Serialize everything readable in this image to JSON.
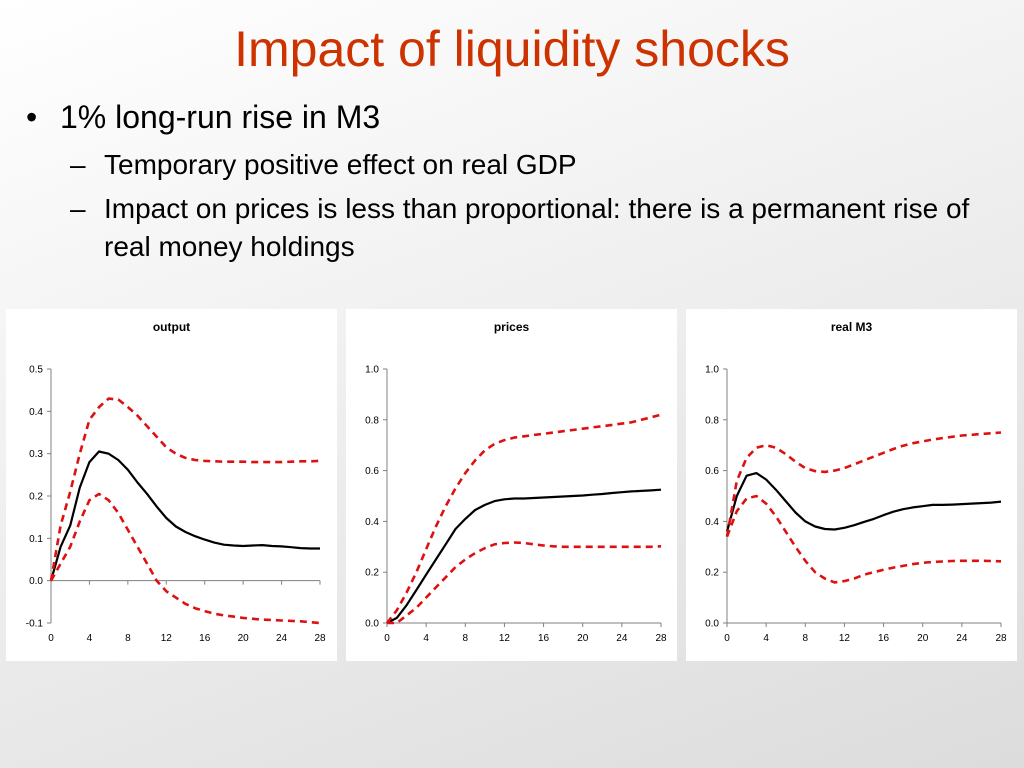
{
  "slide": {
    "title": "Impact of liquidity shocks",
    "bullet": "1% long-run rise in M3",
    "subbullets": [
      "Temporary positive effect on real GDP",
      "Impact on prices is less than proportional: there is a permanent rise of real money holdings"
    ],
    "bullet_glyph": "•",
    "dash_glyph": "–"
  },
  "colors": {
    "title": "#cc3300",
    "line": "#000000",
    "band": "#dd1111"
  },
  "chart_data": [
    {
      "type": "line",
      "title": "output",
      "xlabel": "",
      "ylabel": "",
      "xlim": [
        0,
        28
      ],
      "ylim": [
        -0.1,
        0.5
      ],
      "x_ticks": [
        0,
        4,
        8,
        12,
        16,
        20,
        24,
        28
      ],
      "y_ticks": [
        -0.1,
        0.0,
        0.1,
        0.2,
        0.3,
        0.4,
        0.5
      ],
      "y_tick_labels": [
        "-0.1",
        "0.0",
        "0.1",
        "0.2",
        "0.3",
        "0.4",
        "0.5"
      ],
      "zero_line": true,
      "x": [
        0,
        1,
        2,
        3,
        4,
        5,
        6,
        7,
        8,
        9,
        10,
        11,
        12,
        13,
        14,
        15,
        16,
        17,
        18,
        19,
        20,
        21,
        22,
        23,
        24,
        25,
        26,
        27,
        28
      ],
      "series": [
        {
          "role": "estimate",
          "style": "solid",
          "values": [
            0.0,
            0.08,
            0.13,
            0.22,
            0.28,
            0.305,
            0.3,
            0.285,
            0.262,
            0.232,
            0.205,
            0.175,
            0.148,
            0.128,
            0.115,
            0.105,
            0.097,
            0.09,
            0.085,
            0.083,
            0.082,
            0.083,
            0.084,
            0.082,
            0.081,
            0.079,
            0.077,
            0.076,
            0.076
          ]
        },
        {
          "role": "upper band",
          "style": "dashed",
          "values": [
            0.0,
            0.13,
            0.21,
            0.3,
            0.38,
            0.41,
            0.43,
            0.428,
            0.41,
            0.39,
            0.365,
            0.34,
            0.315,
            0.3,
            0.29,
            0.285,
            0.283,
            0.282,
            0.281,
            0.281,
            0.281,
            0.28,
            0.28,
            0.28,
            0.28,
            0.281,
            0.282,
            0.282,
            0.283
          ]
        },
        {
          "role": "lower band",
          "style": "dashed",
          "values": [
            0.0,
            0.04,
            0.08,
            0.14,
            0.19,
            0.205,
            0.19,
            0.16,
            0.12,
            0.08,
            0.04,
            0.0,
            -0.025,
            -0.04,
            -0.055,
            -0.065,
            -0.072,
            -0.078,
            -0.082,
            -0.085,
            -0.088,
            -0.09,
            -0.092,
            -0.093,
            -0.094,
            -0.095,
            -0.096,
            -0.098,
            -0.1
          ]
        }
      ]
    },
    {
      "type": "line",
      "title": "prices",
      "xlabel": "",
      "ylabel": "",
      "xlim": [
        0,
        28
      ],
      "ylim": [
        0.0,
        1.0
      ],
      "x_ticks": [
        0,
        4,
        8,
        12,
        16,
        20,
        24,
        28
      ],
      "y_ticks": [
        0.0,
        0.2,
        0.4,
        0.6,
        0.8,
        1.0
      ],
      "y_tick_labels": [
        "0.0",
        "0.2",
        "0.4",
        "0.6",
        "0.8",
        "1.0"
      ],
      "zero_line": false,
      "x": [
        0,
        1,
        2,
        3,
        4,
        5,
        6,
        7,
        8,
        9,
        10,
        11,
        12,
        13,
        14,
        15,
        16,
        17,
        18,
        19,
        20,
        21,
        22,
        23,
        24,
        25,
        26,
        27,
        28
      ],
      "series": [
        {
          "role": "estimate",
          "style": "solid",
          "values": [
            0.0,
            0.02,
            0.07,
            0.13,
            0.19,
            0.25,
            0.31,
            0.37,
            0.41,
            0.445,
            0.465,
            0.48,
            0.487,
            0.49,
            0.49,
            0.492,
            0.494,
            0.496,
            0.498,
            0.5,
            0.502,
            0.505,
            0.508,
            0.512,
            0.515,
            0.518,
            0.52,
            0.522,
            0.525
          ]
        },
        {
          "role": "upper band",
          "style": "dashed",
          "values": [
            0.0,
            0.05,
            0.12,
            0.2,
            0.29,
            0.38,
            0.46,
            0.53,
            0.59,
            0.64,
            0.68,
            0.705,
            0.72,
            0.73,
            0.735,
            0.74,
            0.745,
            0.75,
            0.755,
            0.76,
            0.765,
            0.77,
            0.775,
            0.78,
            0.785,
            0.79,
            0.8,
            0.81,
            0.82
          ]
        },
        {
          "role": "lower band",
          "style": "dashed",
          "values": [
            0.0,
            0.0,
            0.03,
            0.06,
            0.1,
            0.14,
            0.18,
            0.22,
            0.25,
            0.275,
            0.295,
            0.31,
            0.315,
            0.317,
            0.315,
            0.31,
            0.305,
            0.302,
            0.3,
            0.3,
            0.3,
            0.3,
            0.3,
            0.3,
            0.3,
            0.3,
            0.3,
            0.3,
            0.302
          ]
        }
      ]
    },
    {
      "type": "line",
      "title": "real M3",
      "xlabel": "",
      "ylabel": "",
      "xlim": [
        0,
        28
      ],
      "ylim": [
        0.0,
        1.0
      ],
      "x_ticks": [
        0,
        4,
        8,
        12,
        16,
        20,
        24,
        28
      ],
      "y_ticks": [
        0.0,
        0.2,
        0.4,
        0.6,
        0.8,
        1.0
      ],
      "y_tick_labels": [
        "0.0",
        "0.2",
        "0.4",
        "0.6",
        "0.8",
        "1.0"
      ],
      "zero_line": false,
      "x": [
        0,
        1,
        2,
        3,
        4,
        5,
        6,
        7,
        8,
        9,
        10,
        11,
        12,
        13,
        14,
        15,
        16,
        17,
        18,
        19,
        20,
        21,
        22,
        23,
        24,
        25,
        26,
        27,
        28
      ],
      "series": [
        {
          "role": "estimate",
          "style": "solid",
          "values": [
            0.36,
            0.5,
            0.58,
            0.59,
            0.565,
            0.525,
            0.48,
            0.435,
            0.4,
            0.38,
            0.37,
            0.368,
            0.375,
            0.385,
            0.398,
            0.41,
            0.425,
            0.438,
            0.448,
            0.455,
            0.46,
            0.465,
            0.465,
            0.466,
            0.468,
            0.47,
            0.472,
            0.474,
            0.478
          ]
        },
        {
          "role": "upper band",
          "style": "dashed",
          "values": [
            0.34,
            0.56,
            0.65,
            0.69,
            0.7,
            0.69,
            0.665,
            0.635,
            0.61,
            0.598,
            0.595,
            0.6,
            0.61,
            0.625,
            0.64,
            0.655,
            0.67,
            0.685,
            0.698,
            0.708,
            0.715,
            0.722,
            0.728,
            0.733,
            0.738,
            0.741,
            0.744,
            0.747,
            0.75
          ]
        },
        {
          "role": "lower band",
          "style": "dashed",
          "values": [
            0.34,
            0.44,
            0.49,
            0.5,
            0.47,
            0.42,
            0.36,
            0.3,
            0.245,
            0.2,
            0.175,
            0.16,
            0.165,
            0.175,
            0.19,
            0.2,
            0.21,
            0.218,
            0.225,
            0.232,
            0.237,
            0.24,
            0.242,
            0.244,
            0.245,
            0.245,
            0.245,
            0.244,
            0.243
          ]
        }
      ]
    }
  ]
}
